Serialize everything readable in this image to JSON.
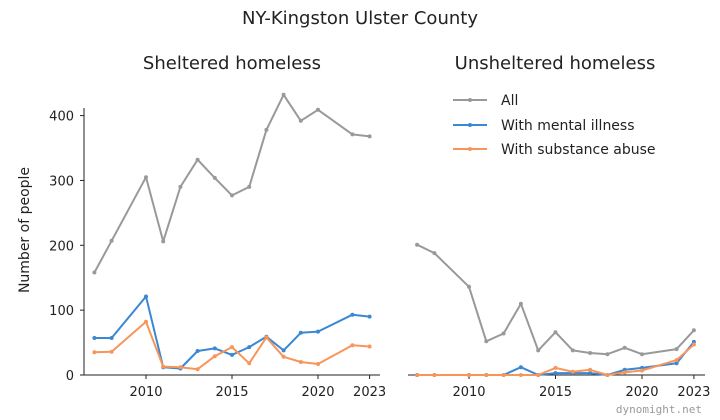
{
  "figure": {
    "suptitle": "NY-Kingston Ulster County",
    "watermark": "dynomight.net"
  },
  "chart_data": [
    {
      "type": "line",
      "title": "Sheltered homeless",
      "xlabel": "",
      "ylabel": "Number of people",
      "xlim": [
        2006.5,
        2023.3
      ],
      "ylim": [
        0,
        440
      ],
      "xticks": [
        2010,
        2015,
        2020,
        2023
      ],
      "yticks": [
        0,
        100,
        200,
        300,
        400
      ],
      "grid": false,
      "series": [
        {
          "name": "All",
          "color": "#999999",
          "x": [
            2007,
            2008,
            2010,
            2011,
            2012,
            2013,
            2014,
            2015,
            2016,
            2017,
            2018,
            2019,
            2020,
            2022,
            2023
          ],
          "y": [
            158,
            207,
            305,
            206,
            290,
            332,
            304,
            277,
            290,
            378,
            432,
            392,
            409,
            371,
            368
          ]
        },
        {
          "name": "With mental illness",
          "color": "#3a87d4",
          "x": [
            2007,
            2008,
            2010,
            2011,
            2012,
            2013,
            2014,
            2015,
            2016,
            2017,
            2018,
            2019,
            2020,
            2022,
            2023
          ],
          "y": [
            57,
            57,
            121,
            12,
            10,
            37,
            41,
            31,
            43,
            59,
            38,
            65,
            67,
            93,
            90
          ]
        },
        {
          "name": "With substance abuse",
          "color": "#f7955a",
          "x": [
            2007,
            2008,
            2010,
            2011,
            2012,
            2013,
            2014,
            2015,
            2016,
            2017,
            2018,
            2019,
            2020,
            2022,
            2023
          ],
          "y": [
            35,
            36,
            82,
            13,
            12,
            9,
            29,
            43,
            18,
            58,
            28,
            20,
            17,
            46,
            44
          ]
        }
      ]
    },
    {
      "type": "line",
      "title": "Unsheltered homeless",
      "xlabel": "",
      "ylabel": "",
      "xlim": [
        2006.5,
        2023.3
      ],
      "ylim": [
        0,
        440
      ],
      "xticks": [
        2010,
        2015,
        2020,
        2023
      ],
      "yticks": [],
      "grid": false,
      "legend": "upper-right",
      "series": [
        {
          "name": "All",
          "color": "#999999",
          "x": [
            2007,
            2008,
            2010,
            2011,
            2012,
            2013,
            2014,
            2015,
            2016,
            2017,
            2018,
            2019,
            2020,
            2022,
            2023
          ],
          "y": [
            201,
            188,
            136,
            52,
            64,
            110,
            38,
            66,
            38,
            34,
            32,
            42,
            32,
            40,
            69
          ]
        },
        {
          "name": "With mental illness",
          "color": "#3a87d4",
          "x": [
            2007,
            2008,
            2010,
            2011,
            2012,
            2013,
            2014,
            2015,
            2016,
            2017,
            2018,
            2019,
            2020,
            2022,
            2023
          ],
          "y": [
            0,
            0,
            0,
            0,
            0,
            12,
            0,
            3,
            3,
            3,
            0,
            8,
            11,
            18,
            51
          ]
        },
        {
          "name": "With substance abuse",
          "color": "#f7955a",
          "x": [
            2007,
            2008,
            2010,
            2011,
            2012,
            2013,
            2014,
            2015,
            2016,
            2017,
            2018,
            2019,
            2020,
            2022,
            2023
          ],
          "y": [
            0,
            0,
            0,
            0,
            0,
            0,
            0,
            11,
            5,
            8,
            0,
            4,
            7,
            23,
            47
          ]
        }
      ]
    }
  ]
}
